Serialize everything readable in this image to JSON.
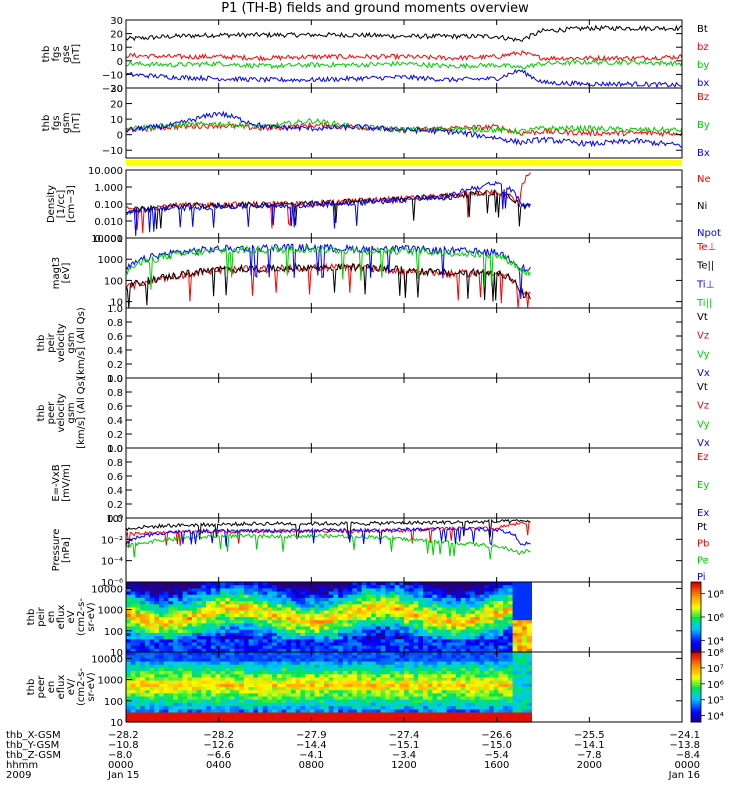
{
  "title": "P1 (TH-B) fields and ground moments overview",
  "chart_data": {
    "type": "stacked-timeseries",
    "panels": [
      {
        "id": "fgs_gse",
        "ylabel": [
          "thb",
          "fgs",
          "gse",
          "[nT]"
        ],
        "ylim": [
          -20,
          30
        ],
        "ticks": [
          "30",
          "20",
          "10",
          "0",
          "−10",
          "−20"
        ],
        "tickvals": [
          30,
          20,
          10,
          0,
          -10,
          -20
        ],
        "series": [
          {
            "name": "Bt",
            "color": "#000000",
            "x": [
              0,
              2,
              4,
              6,
              8,
              10,
              12,
              14,
              16,
              17,
              18,
              20,
              22,
              24
            ],
            "values": [
              16,
              18,
              19,
              19,
              19,
              19,
              18,
              18,
              18,
              15,
              22,
              24,
              24,
              24
            ]
          },
          {
            "name": "bz",
            "color": "#ff0000",
            "x": [
              0,
              2,
              4,
              6,
              8,
              10,
              12,
              14,
              16,
              17,
              18,
              20,
              22,
              24
            ],
            "values": [
              4,
              3,
              3,
              2,
              3,
              3,
              3,
              2,
              3,
              6,
              2,
              2,
              2,
              3
            ]
          },
          {
            "name": "by",
            "color": "#00cc00",
            "x": [
              0,
              2,
              4,
              6,
              8,
              10,
              12,
              14,
              16,
              17,
              18,
              20,
              22,
              24
            ],
            "values": [
              -2,
              -3,
              -2,
              -4,
              -3,
              -3,
              -2,
              -4,
              -3,
              -5,
              -2,
              -1,
              -1,
              -2
            ]
          },
          {
            "name": "bx",
            "color": "#0000ff",
            "x": [
              0,
              2,
              4,
              6,
              8,
              10,
              12,
              14,
              16,
              17,
              18,
              20,
              22,
              24
            ],
            "values": [
              -10,
              -12,
              -13,
              -14,
              -14,
              -13,
              -12,
              -14,
              -13,
              -7,
              -16,
              -17,
              -17,
              -18
            ]
          }
        ]
      },
      {
        "id": "fgs_gsm",
        "ylabel": [
          "thb",
          "fgs",
          "gsm",
          "[nT]"
        ],
        "ylim": [
          -15,
          30
        ],
        "ticks": [
          "30",
          "20",
          "10",
          "0",
          "−10"
        ],
        "tickvals": [
          30,
          20,
          10,
          0,
          -10
        ],
        "series": [
          {
            "name": "Bz",
            "color": "#ff0000",
            "x": [
              0,
              2,
              4,
              6,
              8,
              10,
              12,
              14,
              16,
              17,
              18,
              20,
              22,
              24
            ],
            "values": [
              3,
              5,
              6,
              4,
              6,
              5,
              3,
              4,
              5,
              1,
              2,
              1,
              1,
              1
            ]
          },
          {
            "name": "By",
            "color": "#00cc00",
            "x": [
              0,
              2,
              4,
              6,
              8,
              10,
              12,
              14,
              16,
              17,
              18,
              20,
              22,
              24
            ],
            "values": [
              4,
              6,
              7,
              5,
              9,
              5,
              3,
              4,
              3,
              2,
              4,
              4,
              3,
              3
            ]
          },
          {
            "name": "Bx",
            "color": "#0000ff",
            "x": [
              0,
              2,
              4,
              6,
              8,
              10,
              12,
              14,
              16,
              17,
              18,
              20,
              22,
              24
            ],
            "values": [
              3,
              6,
              14,
              5,
              4,
              5,
              3,
              2,
              -2,
              -5,
              -3,
              -6,
              -4,
              -7
            ]
          }
        ]
      },
      {
        "id": "density",
        "ylabel": [
          "Density",
          "[1/cc]",
          "[cm−3]"
        ],
        "log": true,
        "ylim": [
          0.001,
          10
        ],
        "ticks": [
          "10.000",
          "1.000",
          "0.100",
          "0.010",
          "0.001"
        ],
        "tickvals": [
          10,
          1,
          0.1,
          0.01,
          0.001
        ],
        "series": [
          {
            "name": "Ne",
            "color": "#ff0000",
            "x": [
              0,
              1,
              2,
              4,
              6,
              8,
              10,
              12,
              14,
              16,
              17,
              17.5
            ],
            "values": [
              0.05,
              0.06,
              0.08,
              0.09,
              0.1,
              0.1,
              0.15,
              0.2,
              0.3,
              0.5,
              0.08,
              6
            ]
          },
          {
            "name": "Ni",
            "color": "#000000",
            "x": [
              0,
              1,
              2,
              4,
              6,
              8,
              10,
              12,
              14,
              16,
              17,
              17.5
            ],
            "values": [
              0.04,
              0.05,
              0.07,
              0.08,
              0.09,
              0.1,
              0.14,
              0.2,
              0.3,
              0.5,
              0.07,
              0.08
            ]
          },
          {
            "name": "Npot",
            "color": "#0000ff",
            "x": [
              0,
              1,
              2,
              4,
              6,
              8,
              10,
              12,
              14,
              16,
              17,
              17.5
            ],
            "values": [
              0.03,
              0.05,
              0.06,
              0.07,
              0.08,
              0.09,
              0.12,
              0.18,
              0.25,
              1.5,
              0.1,
              0.1
            ]
          }
        ]
      },
      {
        "id": "temperature",
        "ylabel": [
          "magt3",
          "[eV]"
        ],
        "log": true,
        "ylim": [
          5,
          10000
        ],
        "ticks": [
          "10000",
          "1000",
          "100",
          "10"
        ],
        "tickvals": [
          10000,
          1000,
          100,
          10
        ],
        "series": [
          {
            "name": "Te⊥",
            "color": "#ff0000",
            "x": [
              0,
              2,
              4,
              6,
              8,
              10,
              12,
              14,
              16,
              17,
              17.5
            ],
            "values": [
              40,
              150,
              300,
              350,
              400,
              400,
              300,
              200,
              250,
              30,
              20
            ]
          },
          {
            "name": "Te||",
            "color": "#000000",
            "x": [
              0,
              2,
              4,
              6,
              8,
              10,
              12,
              14,
              16,
              17,
              17.5
            ],
            "values": [
              45,
              160,
              320,
              360,
              420,
              420,
              310,
              210,
              260,
              25,
              15
            ]
          },
          {
            "name": "Ti⊥",
            "color": "#0000ff",
            "x": [
              0,
              2,
              4,
              6,
              8,
              10,
              12,
              14,
              16,
              17,
              17.5
            ],
            "values": [
              300,
              2000,
              3000,
              3500,
              3500,
              3000,
              3000,
              2500,
              2000,
              400,
              300
            ]
          },
          {
            "name": "Ti||",
            "color": "#00cc00",
            "x": [
              0,
              2,
              4,
              6,
              8,
              10,
              12,
              14,
              16,
              17,
              17.5
            ],
            "values": [
              250,
              1500,
              2500,
              2800,
              3000,
              2500,
              2500,
              2000,
              1500,
              300,
              200
            ]
          }
        ]
      },
      {
        "id": "peir_velocity",
        "ylabel": [
          "thb",
          "peir",
          "velocity",
          "gsm",
          "[km/s] (All Qs)"
        ],
        "ylim": [
          0,
          1
        ],
        "ticks": [
          "1.0",
          "0.8",
          "0.6",
          "0.4",
          "0.2",
          "0.0"
        ],
        "tickvals": [
          1,
          0.8,
          0.6,
          0.4,
          0.2,
          0
        ],
        "series": [
          {
            "name": "Vt",
            "color": "#000000",
            "x": [],
            "values": []
          },
          {
            "name": "Vz",
            "color": "#ff0000",
            "x": [],
            "values": []
          },
          {
            "name": "Vy",
            "color": "#00cc00",
            "x": [],
            "values": []
          },
          {
            "name": "Vx",
            "color": "#0000ff",
            "x": [],
            "values": []
          }
        ]
      },
      {
        "id": "peer_velocity",
        "ylabel": [
          "thb",
          "peer",
          "velocity",
          "gsm",
          "[km/s] (All Qs)"
        ],
        "ylim": [
          0,
          1
        ],
        "ticks": [
          "1.0",
          "0.8",
          "0.6",
          "0.4",
          "0.2",
          "0.0"
        ],
        "tickvals": [
          1,
          0.8,
          0.6,
          0.4,
          0.2,
          0
        ],
        "series": [
          {
            "name": "Vt",
            "color": "#000000",
            "x": [],
            "values": []
          },
          {
            "name": "Vz",
            "color": "#ff0000",
            "x": [],
            "values": []
          },
          {
            "name": "Vy",
            "color": "#00cc00",
            "x": [],
            "values": []
          },
          {
            "name": "Vx",
            "color": "#0000ff",
            "x": [],
            "values": []
          }
        ]
      },
      {
        "id": "efield",
        "ylabel": [
          "E=-VxB",
          "[mV/m]"
        ],
        "ylim": [
          0,
          1
        ],
        "ticks": [
          "1.0",
          "0.8",
          "0.6",
          "0.4",
          "0.2",
          "0.0"
        ],
        "tickvals": [
          1,
          0.8,
          0.6,
          0.4,
          0.2,
          0
        ],
        "series": [
          {
            "name": "Ez",
            "color": "#ff0000",
            "x": [],
            "values": []
          },
          {
            "name": "Ey",
            "color": "#00cc00",
            "x": [],
            "values": []
          },
          {
            "name": "Ex",
            "color": "#0000ff",
            "x": [],
            "values": []
          }
        ]
      },
      {
        "id": "pressure",
        "ylabel": [
          "Pressure",
          "[nPa]"
        ],
        "log": true,
        "ylim": [
          1e-06,
          1
        ],
        "ticks": [
          "10⁰",
          "10⁻²",
          "10⁻⁴",
          "10⁻⁶"
        ],
        "tickvals": [
          1,
          0.01,
          0.0001,
          1e-06
        ],
        "series": [
          {
            "name": "Pt",
            "color": "#000000",
            "x": [
              0,
              2,
              4,
              6,
              8,
              10,
              12,
              14,
              16,
              17,
              17.5
            ],
            "values": [
              0.1,
              0.2,
              0.25,
              0.3,
              0.3,
              0.3,
              0.35,
              0.4,
              0.45,
              0.5,
              0.5
            ]
          },
          {
            "name": "Pb",
            "color": "#ff0000",
            "x": [
              0,
              2,
              4,
              6,
              8,
              10,
              12,
              14,
              16,
              17,
              17.5
            ],
            "values": [
              0.03,
              0.05,
              0.05,
              0.06,
              0.06,
              0.06,
              0.07,
              0.1,
              0.1,
              0.3,
              0.35
            ]
          },
          {
            "name": "Pe",
            "color": "#00cc00",
            "x": [
              0,
              2,
              4,
              6,
              8,
              10,
              12,
              14,
              16,
              17,
              17.5
            ],
            "values": [
              0.002,
              0.01,
              0.02,
              0.02,
              0.02,
              0.02,
              0.01,
              0.005,
              0.002,
              0.0005,
              0.001
            ]
          },
          {
            "name": "Pi",
            "color": "#0000ff",
            "x": [
              0,
              2,
              4,
              6,
              8,
              10,
              12,
              14,
              16,
              17,
              17.5
            ],
            "values": [
              0.003,
              0.05,
              0.06,
              0.06,
              0.07,
              0.07,
              0.08,
              0.1,
              0.08,
              0.005,
              0.003
            ]
          }
        ]
      },
      {
        "id": "peir_spec",
        "type": "heatmap",
        "ylabel": [
          "thb",
          "peir",
          "en",
          "eflux",
          "eV",
          "(cm2-s-",
          "sr-eV)"
        ],
        "log": true,
        "ylim": [
          10,
          20000
        ],
        "ticks": [
          "10000",
          "1000",
          "100",
          "10"
        ],
        "tickvals": [
          10000,
          1000,
          100,
          10
        ],
        "colorbar": {
          "ticks": [
            "10⁸",
            "10⁶",
            "10⁴"
          ],
          "tickvals": [
            8,
            6,
            4
          ],
          "range": [
            3,
            9
          ]
        }
      },
      {
        "id": "peer_spec",
        "type": "heatmap",
        "ylabel": [
          "thb",
          "peer",
          "en",
          "eflux",
          "eV/",
          "(cm2-s-",
          "sr-eV)"
        ],
        "log": true,
        "ylim": [
          10,
          20000
        ],
        "ticks": [
          "10000",
          "1000",
          "100",
          "10"
        ],
        "tickvals": [
          10000,
          1000,
          100,
          10
        ],
        "colorbar": {
          "ticks": [
            "10⁸",
            "10⁷",
            "10⁶",
            "10⁵",
            "10⁴"
          ],
          "tickvals": [
            8,
            7,
            6,
            5,
            4
          ],
          "range": [
            3.6,
            8
          ]
        }
      }
    ],
    "xaxis": {
      "range_hours": [
        0,
        24
      ],
      "tick_hours": [
        0,
        4,
        8,
        12,
        16,
        20,
        24
      ],
      "rows": [
        {
          "label": "thb_X-GSM",
          "values": [
            "−28.2",
            "−28.2",
            "−27.9",
            "−27.4",
            "−26.6",
            "−25.5",
            "−24.1"
          ]
        },
        {
          "label": "thb_Y-GSM",
          "values": [
            "−10.8",
            "−12.6",
            "−14.4",
            "−15.1",
            "−15.0",
            "−14.1",
            "−13.8"
          ]
        },
        {
          "label": "thb_Z-GSM",
          "values": [
            "−8.0",
            "−6.6",
            "−4.1",
            "−3.4",
            "−5.4",
            "−7.8",
            "−8.4"
          ]
        },
        {
          "label": "hhmm",
          "values": [
            "0000",
            "0400",
            "0800",
            "1200",
            "1600",
            "2000",
            "0000"
          ]
        },
        {
          "label": "2009",
          "values": [
            "Jan 15",
            "",
            "",
            "",
            "",
            "",
            "Jan 16"
          ]
        }
      ]
    },
    "data_coverage_hours": [
      0,
      17.5
    ]
  }
}
